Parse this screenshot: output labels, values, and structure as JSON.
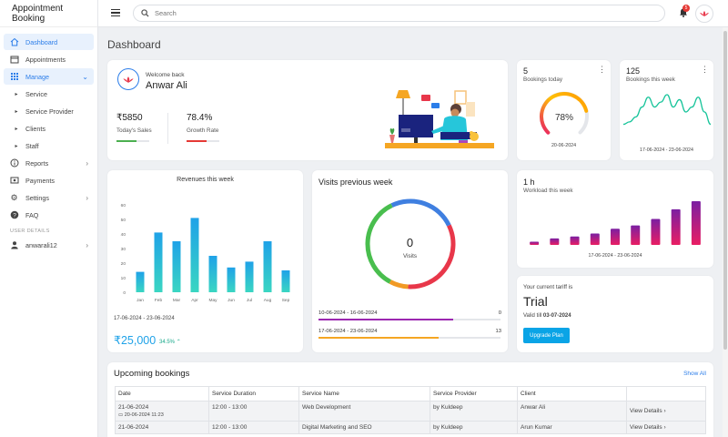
{
  "brand": "Appointment Booking",
  "nav": {
    "dashboard": "Dashboard",
    "appointments": "Appointments",
    "manage": "Manage",
    "service": "Service",
    "service_provider": "Service Provider",
    "clients": "Clients",
    "staff": "Staff",
    "reports": "Reports",
    "payments": "Payments",
    "settings": "Settings",
    "faq": "FAQ",
    "user_details_label": "USER DETAILS",
    "username": "anwarali12"
  },
  "topbar": {
    "search_placeholder": "Search",
    "notif_count": "5"
  },
  "page_title": "Dashboard",
  "welcome": {
    "greeting": "Welcome back",
    "name": "Anwar Ali",
    "sales_value": "₹5850",
    "sales_label": "Today's Sales",
    "growth_value": "78.4%",
    "growth_label": "Growth Rate"
  },
  "bookings_today": {
    "count": "5",
    "label": "Bookings today",
    "percent": "78%",
    "percent_value": 78,
    "date": "20-06-2024"
  },
  "bookings_week": {
    "count": "125",
    "label": "Bookings this week",
    "range": "17-06-2024 - 23-06-2024"
  },
  "revenue": {
    "title": "Revenues this week",
    "range": "17-06-2024 - 23-06-2024",
    "total": "₹25,000",
    "change": "34.5%"
  },
  "visits": {
    "title": "Visits previous week",
    "center_value": "0",
    "center_label": "Visits",
    "rows": [
      {
        "range": "10-06-2024 - 16-06-2024",
        "value": "0"
      },
      {
        "range": "17-06-2024 - 23-06-2024",
        "value": "13"
      }
    ]
  },
  "workload": {
    "value": "1 h",
    "label": "Workload this week",
    "range": "17-06-2024 - 23-06-2024"
  },
  "tariff": {
    "label": "Your current tariff is",
    "plan": "Trial",
    "valid_prefix": "Valid till",
    "valid_date": "03-07-2024",
    "button": "Upgrade Plan"
  },
  "upcoming": {
    "title": "Upcoming bookings",
    "show_all": "Show All",
    "columns": [
      "Date",
      "Service Duration",
      "Service Name",
      "Service Provider",
      "Client",
      ""
    ],
    "rows": [
      {
        "date": "21-06-2024",
        "created": "20-06-2024 11:23",
        "duration": "12:00 - 13:00",
        "service": "Web Development",
        "provider": "by Kuldeep",
        "client": "Anwar Ali",
        "action": "View Details"
      },
      {
        "date": "21-06-2024",
        "created": "",
        "duration": "12:00 - 13:00",
        "service": "Digital Marketing and SEO",
        "provider": "by Kuldeep",
        "client": "Arun Kumar",
        "action": "View Details"
      }
    ]
  },
  "chart_data": [
    {
      "type": "bar",
      "title": "Revenues this week",
      "categories": [
        "Jan",
        "Feb",
        "Mar",
        "Apr",
        "May",
        "Jun",
        "Jul",
        "Aug",
        "Sep"
      ],
      "values": [
        14,
        41,
        35,
        51,
        25,
        17,
        21,
        35,
        15
      ],
      "ylim": [
        0,
        60
      ],
      "yticks": [
        0,
        10,
        20,
        30,
        40,
        50,
        60
      ],
      "colors": [
        "#3ad6c2",
        "#1fa2e8"
      ]
    },
    {
      "type": "line",
      "title": "Bookings this week",
      "values": [
        2,
        3,
        5,
        9,
        13,
        9,
        11,
        14,
        9,
        12,
        7,
        9,
        13,
        7,
        2
      ],
      "color": "#17c49a"
    },
    {
      "type": "pie",
      "title": "Visits previous week",
      "slices": [
        {
          "value": 25,
          "color": "#3f7fe0"
        },
        {
          "value": 33,
          "color": "#e8374a"
        },
        {
          "value": 7,
          "color": "#f19a25"
        },
        {
          "value": 35,
          "color": "#49be4e"
        }
      ]
    },
    {
      "type": "bar",
      "title": "Workload this week",
      "values": [
        1,
        2,
        2.6,
        3.5,
        5,
        6,
        8,
        11,
        13.5
      ],
      "colors": [
        "#7b1fa2",
        "#e91e63"
      ]
    }
  ],
  "visit_bar_fill": [
    0.74,
    0.66
  ],
  "visit_bar_colors": [
    "#9c27b0",
    "#f5a623"
  ]
}
